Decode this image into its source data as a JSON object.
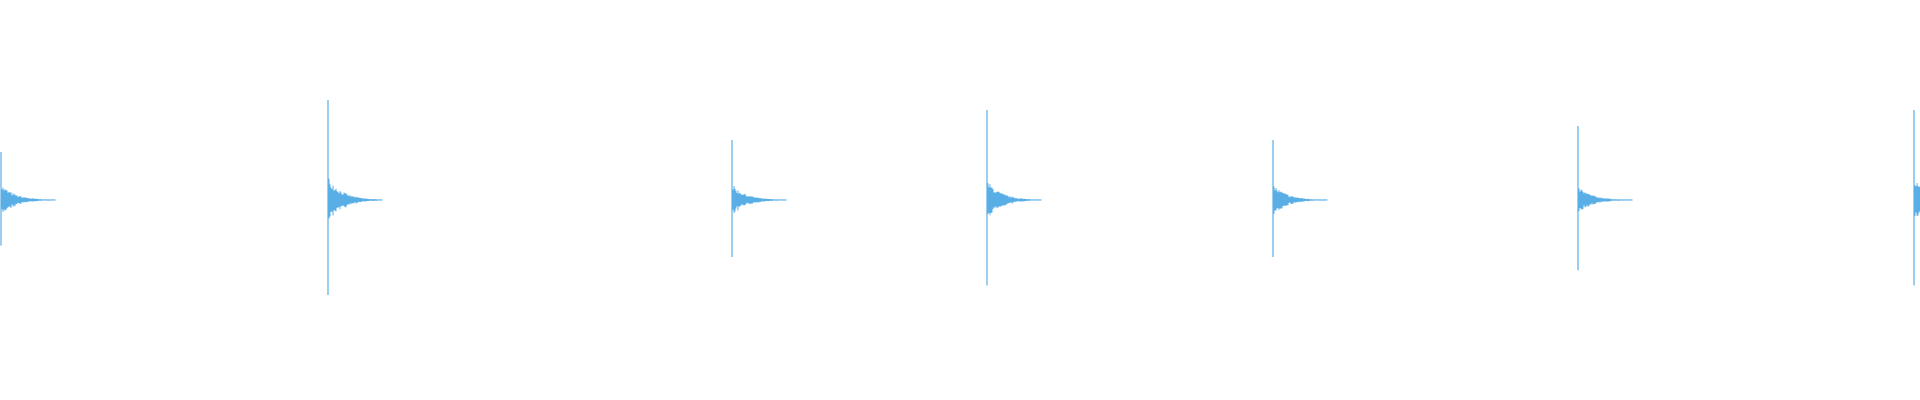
{
  "waveform": {
    "color": "#5aaee6",
    "bursts": [
      {
        "peak": 0.24,
        "body": 0.08
      },
      {
        "peak": 0.5,
        "body": 0.12
      },
      {
        "peak": 0.3,
        "body": 0.08
      },
      {
        "peak": 0.45,
        "body": 0.1
      },
      {
        "peak": 0.3,
        "body": 0.08
      },
      {
        "peak": 0.37,
        "body": 0.07
      },
      {
        "peak": 0.45,
        "body": 0.12
      }
    ]
  }
}
